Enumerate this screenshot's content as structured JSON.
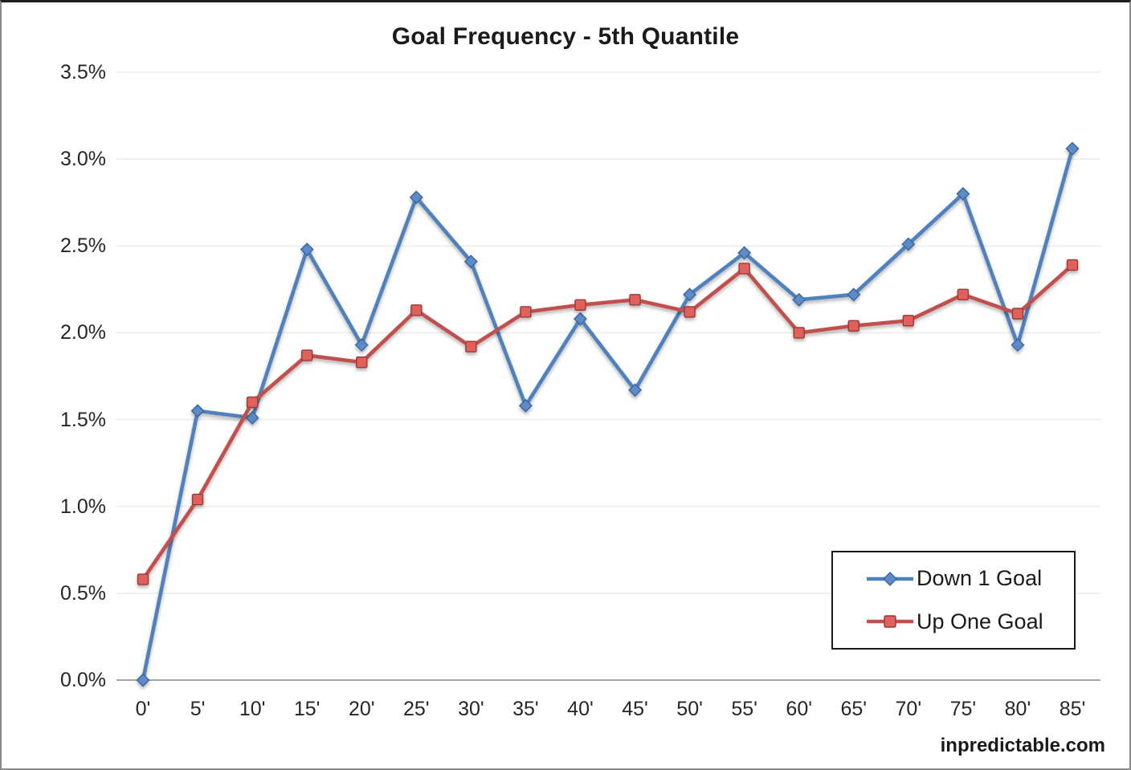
{
  "chart": {
    "title": "Goal Frequency - 5th Quantile",
    "watermark": "inpredictable.com"
  },
  "chart_data": {
    "type": "line",
    "title": "Goal Frequency - 5th Quantile",
    "categories": [
      "0'",
      "5'",
      "10'",
      "15'",
      "20'",
      "25'",
      "30'",
      "35'",
      "40'",
      "45'",
      "50'",
      "55'",
      "60'",
      "65'",
      "70'",
      "75'",
      "80'",
      "85'"
    ],
    "series": [
      {
        "name": "Down 1 Goal",
        "marker": "diamond",
        "color": "#4F81BD",
        "marker_fill": "#5C8BC7",
        "marker_stroke": "#3A66A0",
        "values": [
          0.0,
          1.55,
          1.51,
          2.48,
          1.93,
          2.78,
          2.41,
          1.58,
          2.08,
          1.67,
          2.22,
          2.46,
          2.19,
          2.22,
          2.51,
          2.8,
          1.93,
          3.06
        ]
      },
      {
        "name": "Up One Goal",
        "marker": "square",
        "color": "#C0504D",
        "marker_fill": "#E0605B",
        "marker_stroke": "#9C3734",
        "values": [
          0.58,
          1.04,
          1.6,
          1.87,
          1.83,
          2.13,
          1.92,
          2.12,
          2.16,
          2.19,
          2.12,
          2.37,
          2.0,
          2.04,
          2.07,
          2.22,
          2.11,
          2.39
        ]
      }
    ],
    "y_ticks": [
      "0.0%",
      "0.5%",
      "1.0%",
      "1.5%",
      "2.0%",
      "2.5%",
      "3.0%",
      "3.5%"
    ],
    "y_tick_values": [
      0,
      0.5,
      1.0,
      1.5,
      2.0,
      2.5,
      3.0,
      3.5
    ],
    "ylim": [
      0,
      3.5
    ],
    "xlabel": "",
    "ylabel": "",
    "grid": true,
    "grid_color": "#ECECEC",
    "axis_color": "#A6A6A6",
    "legend_position": "inside-bottom-right"
  }
}
